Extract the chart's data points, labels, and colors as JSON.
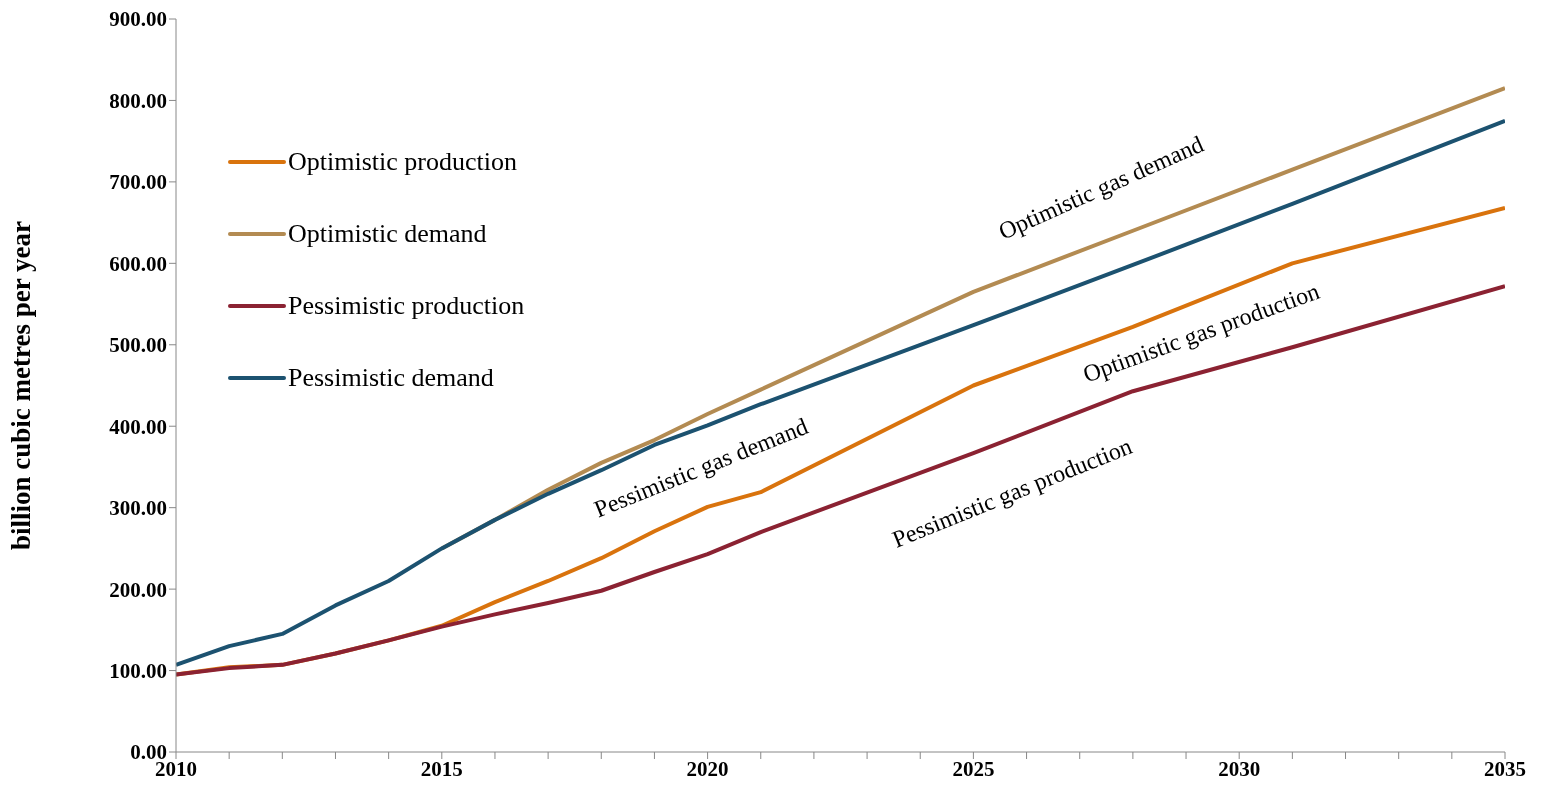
{
  "chart_data": {
    "type": "line",
    "ylabel": "billion cubic metres per year",
    "x": [
      2010,
      2011,
      2012,
      2013,
      2014,
      2015,
      2016,
      2017,
      2018,
      2019,
      2020,
      2021,
      2025,
      2028,
      2031,
      2035
    ],
    "series": [
      {
        "name": "Optimistic production",
        "color": "#d9730d",
        "values": [
          95,
          104,
          107,
          121,
          137,
          155,
          184,
          210,
          238,
          271,
          301,
          319,
          450,
          522,
          600,
          668
        ]
      },
      {
        "name": "Optimistic demand",
        "color": "#b38b52",
        "values": [
          null,
          null,
          null,
          null,
          null,
          250,
          285,
          322,
          355,
          383,
          415,
          445,
          565,
          640,
          715,
          815
        ]
      },
      {
        "name": "Pessimistic production",
        "color": "#8b2232",
        "values": [
          95,
          103,
          107,
          121,
          137,
          154,
          169,
          183,
          198,
          221,
          243,
          270,
          367,
          443,
          497,
          572
        ]
      },
      {
        "name": "Pessimistic demand",
        "color": "#1c5270",
        "values": [
          107,
          130,
          145,
          180,
          210,
          250,
          285,
          317,
          346,
          377,
          401,
          427,
          524,
          598,
          673,
          775
        ]
      }
    ],
    "xlim": [
      2010,
      2035
    ],
    "xticks": [
      2010,
      {
        "value": 2011,
        "label": null
      },
      {
        "value": 2012,
        "label": null
      },
      {
        "value": 2013,
        "label": null
      },
      {
        "value": 2014,
        "label": null
      },
      2015,
      {
        "value": 2016,
        "label": null
      },
      {
        "value": 2017,
        "label": null
      },
      {
        "value": 2018,
        "label": null
      },
      {
        "value": 2019,
        "label": null
      },
      2020,
      {
        "value": 2021,
        "label": null
      },
      {
        "value": 2022,
        "label": null
      },
      {
        "value": 2023,
        "label": null
      },
      {
        "value": 2024,
        "label": null
      },
      2025,
      {
        "value": 2026,
        "label": null
      },
      {
        "value": 2027,
        "label": null
      },
      {
        "value": 2028,
        "label": null
      },
      {
        "value": 2029,
        "label": null
      },
      2030,
      {
        "value": 2031,
        "label": null
      },
      {
        "value": 2032,
        "label": null
      },
      {
        "value": 2033,
        "label": null
      },
      {
        "value": 2034,
        "label": null
      },
      2035
    ],
    "ylim": [
      0,
      900
    ],
    "yticks": [
      {
        "value": 0,
        "label": "0.00"
      },
      {
        "value": 100,
        "label": "100.00"
      },
      {
        "value": 200,
        "label": "200.00"
      },
      {
        "value": 300,
        "label": "300.00"
      },
      {
        "value": 400,
        "label": "400.00"
      },
      {
        "value": 500,
        "label": "500.00"
      },
      {
        "value": 600,
        "label": "600.00"
      },
      {
        "value": 700,
        "label": "700.00"
      },
      {
        "value": 800,
        "label": "800.00"
      },
      {
        "value": 900,
        "label": "900.00"
      }
    ],
    "annotations": [
      "Optimistic gas demand",
      "Pessimistic gas demand",
      "Optimistic gas production",
      "Pessimistic gas production"
    ],
    "grid": false,
    "legend": "top left",
    "marker": "none",
    "line_style": "solid"
  }
}
